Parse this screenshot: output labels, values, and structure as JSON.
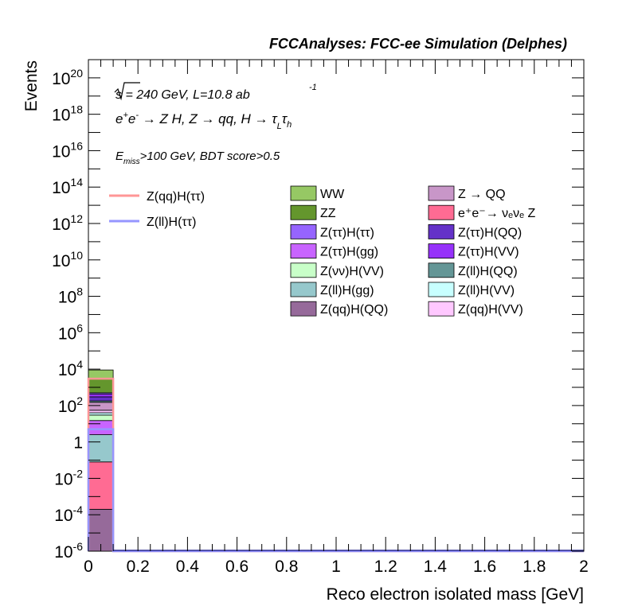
{
  "header": {
    "title": "FCCAnalyses: FCC-ee Simulation (Delphes)"
  },
  "annotations": {
    "energy_lumi": "√s = 240 GeV, L=10.8 ab",
    "energy_lumi_exp": "-1",
    "process": "e⁺e⁻ → Z H, Z → qq, H → τ_L τ_h",
    "selection": "E_miss>100 GeV, BDT score>0.5"
  },
  "chart_data": {
    "type": "bar",
    "subtype": "stacked-histogram",
    "xlabel": "Reco electron isolated mass [GeV]",
    "ylabel": "Events",
    "xlim": [
      0,
      2
    ],
    "ylim": [
      1e-06,
      1e+21
    ],
    "y_scale": "log",
    "x_ticks": [
      "0",
      "0.2",
      "0.4",
      "0.6",
      "0.8",
      "1",
      "1.2",
      "1.4",
      "1.6",
      "1.8",
      "2"
    ],
    "y_ticks": [
      {
        "base": "10",
        "exp": "-6",
        "value": 1e-06
      },
      {
        "base": "10",
        "exp": "-4",
        "value": 0.0001
      },
      {
        "base": "10",
        "exp": "-2",
        "value": 0.01
      },
      {
        "base": "1",
        "exp": "",
        "value": 1
      },
      {
        "base": "10",
        "exp": "2",
        "value": 100.0
      },
      {
        "base": "10",
        "exp": "4",
        "value": 10000.0
      },
      {
        "base": "10",
        "exp": "6",
        "value": 1000000.0
      },
      {
        "base": "10",
        "exp": "8",
        "value": 100000000.0
      },
      {
        "base": "10",
        "exp": "10",
        "value": 10000000000.0
      },
      {
        "base": "10",
        "exp": "12",
        "value": 1000000000000.0
      },
      {
        "base": "10",
        "exp": "14",
        "value": 100000000000000.0
      },
      {
        "base": "10",
        "exp": "16",
        "value": 1e+16
      },
      {
        "base": "10",
        "exp": "18",
        "value": 1e+18
      },
      {
        "base": "10",
        "exp": "20",
        "value": 1e+20
      }
    ],
    "bin": [
      0,
      0.1
    ],
    "stack_order_bottom_to_top": [
      {
        "name": "Z(qq)H(QQ)",
        "color": "#966a9a",
        "cum_top": 0.0002
      },
      {
        "name": "e⁺e⁻→ νₑνₑ Z",
        "color": "#ff6b93",
        "cum_top": 0.08
      },
      {
        "name": "Z(ll)H(gg)",
        "color": "#96c8cc",
        "cum_top": 2.5
      },
      {
        "name": "Z(ττ)H(gg)",
        "color": "#c864ff",
        "cum_top": 15
      },
      {
        "name": "Z(νν)H(VV)",
        "color": "#c8ffc8",
        "cum_top": 30
      },
      {
        "name": "Z(ll)H(VV)",
        "color": "#c8ffff",
        "cum_top": 40
      },
      {
        "name": "Z(qq)H(VV)",
        "color": "#ffc8ff",
        "cum_top": 55
      },
      {
        "name": "Z → QQ",
        "color": "#c896c8",
        "cum_top": 150
      },
      {
        "name": "Z(ll)H(QQ)",
        "color": "#649696",
        "cum_top": 180
      },
      {
        "name": "Z(ττ)H(QQ)",
        "color": "#6432c8",
        "cum_top": 300
      },
      {
        "name": "Z(ττ)H(VV)",
        "color": "#9632fa",
        "cum_top": 420
      },
      {
        "name": "Z(ττ)H(ττ)",
        "color": "#9664ff",
        "cum_top": 500
      },
      {
        "name": "ZZ",
        "color": "#64962d",
        "cum_top": 3000
      },
      {
        "name": "WW",
        "color": "#96c864",
        "cum_top": 9000
      }
    ],
    "signals": [
      {
        "name": "Z(qq)H(ττ)",
        "color": "#ff9696",
        "value": 3000
      },
      {
        "name": "Z(ll)H(ττ)",
        "color": "#9696ff",
        "value": 5
      }
    ],
    "legend_signals": [
      {
        "label": "Z(qq)H(ττ)",
        "color": "#ff9696"
      },
      {
        "label": "Z(ll)H(ττ)",
        "color": "#9696ff"
      }
    ],
    "legend_backgrounds": [
      {
        "label": "WW",
        "color": "#96c864"
      },
      {
        "label": "Z → QQ",
        "color": "#c896c8"
      },
      {
        "label": "ZZ",
        "color": "#64962d"
      },
      {
        "label": "e⁺e⁻→ νₑνₑ Z",
        "color": "#ff6b93"
      },
      {
        "label": "Z(ττ)H(ττ)",
        "color": "#9664ff"
      },
      {
        "label": "Z(ττ)H(QQ)",
        "color": "#6432c8"
      },
      {
        "label": "Z(ττ)H(gg)",
        "color": "#c864ff"
      },
      {
        "label": "Z(ττ)H(VV)",
        "color": "#9632fa"
      },
      {
        "label": "Z(νν)H(VV)",
        "color": "#c8ffc8"
      },
      {
        "label": "Z(ll)H(QQ)",
        "color": "#649696"
      },
      {
        "label": "Z(ll)H(gg)",
        "color": "#96c8cc"
      },
      {
        "label": "Z(ll)H(VV)",
        "color": "#c8ffff"
      },
      {
        "label": "Z(qq)H(QQ)",
        "color": "#966a9a"
      },
      {
        "label": "Z(qq)H(VV)",
        "color": "#ffc8ff"
      }
    ]
  }
}
